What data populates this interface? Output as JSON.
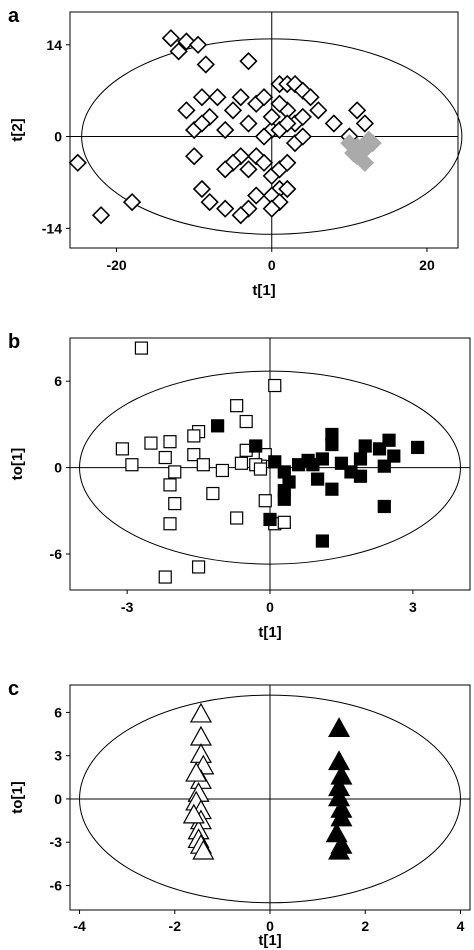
{
  "panels": [
    {
      "panel_label": "a",
      "xlabel": "t[1]",
      "ylabel": "t[2]",
      "xticks": [
        -20,
        0,
        20
      ],
      "yticks": [
        14,
        0,
        -14
      ]
    },
    {
      "panel_label": "b",
      "xlabel": "t[1]",
      "ylabel": "to[1]",
      "xticks": [
        -3,
        0,
        3
      ],
      "yticks": [
        6,
        0,
        -6
      ]
    },
    {
      "panel_label": "c",
      "xlabel": "t[1]",
      "ylabel": "to[1]",
      "xticks": [
        -4,
        -2,
        0,
        2,
        4
      ],
      "yticks": [
        6,
        3,
        0,
        -3,
        -6
      ]
    }
  ],
  "colors": {
    "open": "#000000",
    "filled": "#000000",
    "grey": "#aaaaaa"
  },
  "chart_data": [
    {
      "type": "scatter",
      "xlim": [
        -26,
        24
      ],
      "ylim": [
        -17,
        19
      ],
      "grid": false,
      "ellipse": {
        "cx": 0,
        "cy": 0,
        "rx": 24.5,
        "ry": 14.9
      },
      "series": [
        {
          "marker": "diamond-open",
          "points": [
            [
              -13,
              15
            ],
            [
              -12,
              13
            ],
            [
              -11,
              14.5
            ],
            [
              -9.5,
              14
            ],
            [
              -8.5,
              11
            ],
            [
              -3,
              11.5
            ],
            [
              -11,
              4
            ],
            [
              -9,
              6
            ],
            [
              -8,
              3
            ],
            [
              -10,
              1
            ],
            [
              -9,
              2
            ],
            [
              -7,
              6
            ],
            [
              -6,
              1
            ],
            [
              -5,
              4
            ],
            [
              -4,
              6
            ],
            [
              -3,
              2
            ],
            [
              -2,
              5
            ],
            [
              -1,
              6
            ],
            [
              0,
              1
            ],
            [
              1,
              8
            ],
            [
              2,
              8
            ],
            [
              3,
              8
            ],
            [
              4,
              7
            ],
            [
              5,
              6
            ],
            [
              2,
              4
            ],
            [
              3,
              2
            ],
            [
              4,
              3
            ],
            [
              6,
              4
            ],
            [
              8,
              2
            ],
            [
              1,
              5
            ],
            [
              0,
              3
            ],
            [
              -1,
              0
            ],
            [
              1,
              1
            ],
            [
              2,
              2
            ],
            [
              3,
              -1
            ],
            [
              4,
              0
            ],
            [
              -2,
              -3
            ],
            [
              -4,
              -3
            ],
            [
              -5,
              -4
            ],
            [
              -6,
              -5
            ],
            [
              -3,
              -5
            ],
            [
              -1,
              -4
            ],
            [
              0,
              -6
            ],
            [
              1,
              -5
            ],
            [
              2,
              -4
            ],
            [
              1,
              -8
            ],
            [
              0,
              -9
            ],
            [
              -2,
              -9
            ],
            [
              -3,
              -11
            ],
            [
              -4,
              -12
            ],
            [
              -6,
              -11
            ],
            [
              -8,
              -10
            ],
            [
              -9,
              -8
            ],
            [
              -10,
              -3
            ],
            [
              1,
              -10
            ],
            [
              0,
              -11
            ],
            [
              2,
              -8
            ],
            [
              -25,
              -4
            ],
            [
              -22,
              -12
            ],
            [
              -18,
              -10
            ],
            [
              11,
              4
            ],
            [
              12,
              2
            ],
            [
              10,
              0
            ],
            [
              11,
              -2
            ]
          ]
        },
        {
          "marker": "diamond-filled-grey",
          "points": [
            [
              10,
              -1
            ],
            [
              11,
              -1.5
            ],
            [
              12,
              -2
            ],
            [
              13,
              -1
            ],
            [
              11,
              -3
            ],
            [
              12,
              -4
            ],
            [
              10.5,
              -2.5
            ],
            [
              12.5,
              -0.5
            ]
          ]
        }
      ]
    },
    {
      "type": "scatter",
      "xlim": [
        -4.2,
        4.2
      ],
      "ylim": [
        -8.5,
        9.0
      ],
      "grid": false,
      "ellipse": {
        "cx": 0,
        "cy": 0,
        "rx": 4.0,
        "ry": 6.7
      },
      "series": [
        {
          "marker": "square-open",
          "points": [
            [
              -2.7,
              8.3
            ],
            [
              0.1,
              5.7
            ],
            [
              -0.7,
              4.3
            ],
            [
              -0.5,
              3.2
            ],
            [
              -1.5,
              2.5
            ],
            [
              -1.6,
              2.2
            ],
            [
              -2.1,
              1.8
            ],
            [
              -2.5,
              1.7
            ],
            [
              -3.1,
              1.3
            ],
            [
              -0.5,
              1.2
            ],
            [
              -1.6,
              0.9
            ],
            [
              -0.1,
              0.9
            ],
            [
              -2.2,
              0.7
            ],
            [
              -0.6,
              0.3
            ],
            [
              -0.2,
              0.1
            ],
            [
              -0.3,
              0.2
            ],
            [
              -2.9,
              0.2
            ],
            [
              -1.4,
              0.2
            ],
            [
              -0.2,
              -0.1
            ],
            [
              -2.0,
              -0.3
            ],
            [
              -1.0,
              -0.2
            ],
            [
              -2.1,
              -1.2
            ],
            [
              -1.2,
              -1.8
            ],
            [
              -2.0,
              -2.5
            ],
            [
              -0.1,
              -2.3
            ],
            [
              0.1,
              -3.9
            ],
            [
              0.3,
              -3.8
            ],
            [
              -0.7,
              -3.5
            ],
            [
              -2.1,
              -3.9
            ],
            [
              -1.5,
              -6.9
            ],
            [
              -2.2,
              -7.6
            ]
          ]
        },
        {
          "marker": "square-filled",
          "points": [
            [
              -1.1,
              2.9
            ],
            [
              -0.3,
              1.5
            ],
            [
              0.1,
              0.4
            ],
            [
              0.3,
              -0.3
            ],
            [
              0.4,
              -1.0
            ],
            [
              0.3,
              -2.2
            ],
            [
              0.6,
              0.2
            ],
            [
              0.8,
              0.5
            ],
            [
              0.9,
              0.2
            ],
            [
              1.1,
              0.6
            ],
            [
              1.3,
              2.3
            ],
            [
              1.3,
              1.6
            ],
            [
              1.5,
              0.3
            ],
            [
              1.7,
              -0.3
            ],
            [
              1.9,
              0.6
            ],
            [
              2.0,
              1.5
            ],
            [
              2.3,
              1.3
            ],
            [
              2.5,
              1.9
            ],
            [
              2.6,
              0.8
            ],
            [
              3.1,
              1.4
            ],
            [
              1.0,
              -0.8
            ],
            [
              1.3,
              -1.5
            ],
            [
              1.9,
              -0.6
            ],
            [
              2.4,
              0.1
            ],
            [
              0.3,
              -1.6
            ],
            [
              0.0,
              -3.6
            ],
            [
              2.4,
              -2.7
            ],
            [
              1.1,
              -5.1
            ]
          ]
        }
      ]
    },
    {
      "type": "scatter",
      "xlim": [
        -4.2,
        4.2
      ],
      "ylim": [
        -7.7,
        7.9
      ],
      "grid": false,
      "ellipse": {
        "cx": 0,
        "cy": 0,
        "rx": 4.0,
        "ry": 7.2
      },
      "series": [
        {
          "marker": "triangle-open",
          "points": [
            [
              -1.45,
              5.9
            ],
            [
              -1.45,
              4.3
            ],
            [
              -1.45,
              3.1
            ],
            [
              -1.4,
              2.3
            ],
            [
              -1.45,
              1.3
            ],
            [
              -1.5,
              0.4
            ],
            [
              -1.55,
              -0.2
            ],
            [
              -1.45,
              -0.8
            ],
            [
              -1.45,
              -1.5
            ],
            [
              -1.5,
              -2.2
            ],
            [
              -1.5,
              -2.8
            ],
            [
              -1.45,
              -3.2
            ],
            [
              -1.4,
              -3.6
            ],
            [
              -1.6,
              -1.1
            ],
            [
              -1.55,
              1.8
            ]
          ]
        },
        {
          "marker": "triangle-filled",
          "points": [
            [
              1.45,
              4.9
            ],
            [
              1.45,
              2.6
            ],
            [
              1.5,
              1.6
            ],
            [
              1.45,
              0.8
            ],
            [
              1.45,
              0.1
            ],
            [
              1.5,
              -0.7
            ],
            [
              1.5,
              -1.3
            ],
            [
              1.5,
              -3.2
            ],
            [
              1.45,
              -3.6
            ],
            [
              1.4,
              -2.4
            ]
          ]
        }
      ]
    }
  ]
}
